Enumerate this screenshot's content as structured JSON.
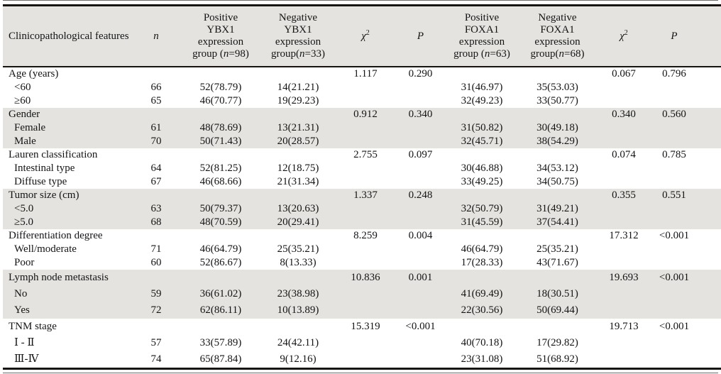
{
  "table": {
    "columns": [
      {
        "segments": [
          {
            "text": "Clinicopathological features"
          }
        ]
      },
      {
        "segments": [
          {
            "text": "n",
            "italic": true
          }
        ]
      },
      {
        "segments": [
          {
            "text": "Positive"
          },
          {
            "br": true
          },
          {
            "text": "YBX1"
          },
          {
            "br": true
          },
          {
            "text": "expression"
          },
          {
            "br": true
          },
          {
            "text": "group ("
          },
          {
            "text": "n",
            "italic": true
          },
          {
            "text": "=98)"
          }
        ]
      },
      {
        "segments": [
          {
            "text": "Negative"
          },
          {
            "br": true
          },
          {
            "text": "YBX1"
          },
          {
            "br": true
          },
          {
            "text": "expression"
          },
          {
            "br": true
          },
          {
            "text": "group("
          },
          {
            "text": "n",
            "italic": true
          },
          {
            "text": "=33)"
          }
        ]
      },
      {
        "segments": [
          {
            "text": "χ",
            "italic": true
          },
          {
            "text": "2",
            "sup": true
          }
        ]
      },
      {
        "segments": [
          {
            "text": "P",
            "italic": true
          }
        ]
      },
      {
        "segments": [
          {
            "text": "Positive"
          },
          {
            "br": true
          },
          {
            "text": "FOXA1"
          },
          {
            "br": true
          },
          {
            "text": "expression"
          },
          {
            "br": true
          },
          {
            "text": "group ("
          },
          {
            "text": "n",
            "italic": true
          },
          {
            "text": "=63)"
          }
        ]
      },
      {
        "segments": [
          {
            "text": "Negative"
          },
          {
            "br": true
          },
          {
            "text": "FOXA1"
          },
          {
            "br": true
          },
          {
            "text": "expression"
          },
          {
            "br": true
          },
          {
            "text": "group("
          },
          {
            "text": "n",
            "italic": true
          },
          {
            "text": "=68)"
          }
        ]
      },
      {
        "segments": [
          {
            "text": "χ",
            "italic": true
          },
          {
            "text": "2",
            "sup": true
          }
        ]
      },
      {
        "segments": [
          {
            "text": "P",
            "italic": true
          }
        ]
      }
    ],
    "sections": [
      {
        "label": "Age (years)",
        "chi1": "1.117",
        "p1": "0.290",
        "chi2": "0.067",
        "p2": "0.796",
        "shaded": false,
        "tall": false,
        "rows": [
          {
            "label": "<60",
            "n": "66",
            "ybx1_pos": "52(78.79)",
            "ybx1_neg": "14(21.21)",
            "foxa1_pos": "31(46.97)",
            "foxa1_neg": "35(53.03)"
          },
          {
            "label": "≥60",
            "n": "65",
            "ybx1_pos": "46(70.77)",
            "ybx1_neg": "19(29.23)",
            "foxa1_pos": "32(49.23)",
            "foxa1_neg": "33(50.77)"
          }
        ]
      },
      {
        "label": "Gender",
        "chi1": "0.912",
        "p1": "0.340",
        "chi2": "0.340",
        "p2": "0.560",
        "shaded": true,
        "tall": false,
        "rows": [
          {
            "label": "Female",
            "n": "61",
            "ybx1_pos": "48(78.69)",
            "ybx1_neg": "13(21.31)",
            "foxa1_pos": "31(50.82)",
            "foxa1_neg": "30(49.18)"
          },
          {
            "label": "Male",
            "n": "70",
            "ybx1_pos": "50(71.43)",
            "ybx1_neg": "20(28.57)",
            "foxa1_pos": "32(45.71)",
            "foxa1_neg": "38(54.29)"
          }
        ]
      },
      {
        "label": "Lauren classification",
        "chi1": "2.755",
        "p1": "0.097",
        "chi2": "0.074",
        "p2": "0.785",
        "shaded": false,
        "tall": false,
        "rows": [
          {
            "label": "Intestinal type",
            "n": "64",
            "ybx1_pos": "52(81.25)",
            "ybx1_neg": "12(18.75)",
            "foxa1_pos": "30(46.88)",
            "foxa1_neg": "34(53.12)"
          },
          {
            "label": "Diffuse type",
            "n": "67",
            "ybx1_pos": "46(68.66)",
            "ybx1_neg": "21(31.34)",
            "foxa1_pos": "33(49.25)",
            "foxa1_neg": "34(50.75)"
          }
        ]
      },
      {
        "label": "Tumor size (cm)",
        "chi1": "1.337",
        "p1": "0.248",
        "chi2": "0.355",
        "p2": "0.551",
        "shaded": true,
        "tall": false,
        "rows": [
          {
            "label": "<5.0",
            "n": "63",
            "ybx1_pos": "50(79.37)",
            "ybx1_neg": "13(20.63)",
            "foxa1_pos": "32(50.79)",
            "foxa1_neg": "31(49.21)"
          },
          {
            "label": "≥5.0",
            "n": "68",
            "ybx1_pos": "48(70.59)",
            "ybx1_neg": "20(29.41)",
            "foxa1_pos": "31(45.59)",
            "foxa1_neg": "37(54.41)"
          }
        ]
      },
      {
        "label": "Differentiation degree",
        "chi1": "8.259",
        "p1": "0.004",
        "chi2": "17.312",
        "p2": "<0.001",
        "shaded": false,
        "tall": false,
        "rows": [
          {
            "label": "Well/moderate",
            "n": "71",
            "ybx1_pos": "46(64.79)",
            "ybx1_neg": "25(35.21)",
            "foxa1_pos": "46(64.79)",
            "foxa1_neg": "25(35.21)"
          },
          {
            "label": "Poor",
            "n": "60",
            "ybx1_pos": "52(86.67)",
            "ybx1_neg": "8(13.33)",
            "foxa1_pos": "17(28.33)",
            "foxa1_neg": "43(71.67)"
          }
        ]
      },
      {
        "label": "Lymph node metastasis",
        "chi1": "10.836",
        "p1": "0.001",
        "chi2": "19.693",
        "p2": "<0.001",
        "shaded": true,
        "tall": true,
        "rows": [
          {
            "label": "No",
            "n": "59",
            "ybx1_pos": "36(61.02)",
            "ybx1_neg": "23(38.98)",
            "foxa1_pos": "41(69.49)",
            "foxa1_neg": "18(30.51)"
          },
          {
            "label": "Yes",
            "n": "72",
            "ybx1_pos": "62(86.11)",
            "ybx1_neg": "10(13.89)",
            "foxa1_pos": "22(30.56)",
            "foxa1_neg": "50(69.44)"
          }
        ]
      },
      {
        "label": "TNM stage",
        "chi1": "15.319",
        "p1": "<0.001",
        "chi2": "19.713",
        "p2": "<0.001",
        "shaded": false,
        "tall": true,
        "rows": [
          {
            "label": "Ⅰ - Ⅱ",
            "n": "57",
            "ybx1_pos": "33(57.89)",
            "ybx1_neg": "24(42.11)",
            "foxa1_pos": "40(70.18)",
            "foxa1_neg": "17(29.82)"
          },
          {
            "label": "Ⅲ-Ⅳ",
            "n": "74",
            "ybx1_pos": "65(87.84)",
            "ybx1_neg": "9(12.16)",
            "foxa1_pos": "23(31.08)",
            "foxa1_neg": "51(68.92)"
          }
        ]
      }
    ]
  }
}
